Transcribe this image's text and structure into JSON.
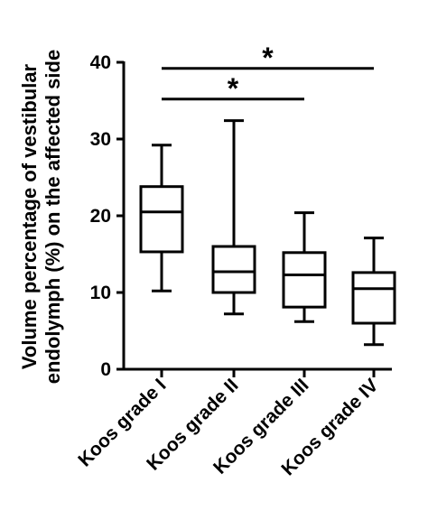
{
  "chart_data": {
    "type": "box",
    "ylabel_line1": "Volume percentage of vestibular",
    "ylabel_line2": "endolymph (%) on the affected side",
    "ylim": [
      0,
      40
    ],
    "yticks": [
      "0",
      "10",
      "20",
      "30",
      "40"
    ],
    "categories": [
      "Koos grade I",
      "Koos grade II",
      "Koos grade III",
      "Koos grade IV"
    ],
    "boxes": [
      {
        "category": "Koos grade I",
        "min": 10.2,
        "q1": 15.3,
        "median": 20.5,
        "q3": 23.8,
        "max": 29.2
      },
      {
        "category": "Koos grade II",
        "min": 7.2,
        "q1": 10.0,
        "median": 12.7,
        "q3": 16.0,
        "max": 32.4
      },
      {
        "category": "Koos grade III",
        "min": 6.2,
        "q1": 8.1,
        "median": 12.3,
        "q3": 15.2,
        "max": 20.4
      },
      {
        "category": "Koos grade IV",
        "min": 3.2,
        "q1": 6.0,
        "median": 10.5,
        "q3": 12.6,
        "max": 17.1
      }
    ],
    "significance": [
      {
        "from": "Koos grade I",
        "to": "Koos grade III",
        "y": 35.2,
        "label": "*"
      },
      {
        "from": "Koos grade I",
        "to": "Koos grade IV",
        "y": 39.2,
        "label": "*"
      }
    ],
    "grid": false,
    "legend": "none"
  }
}
